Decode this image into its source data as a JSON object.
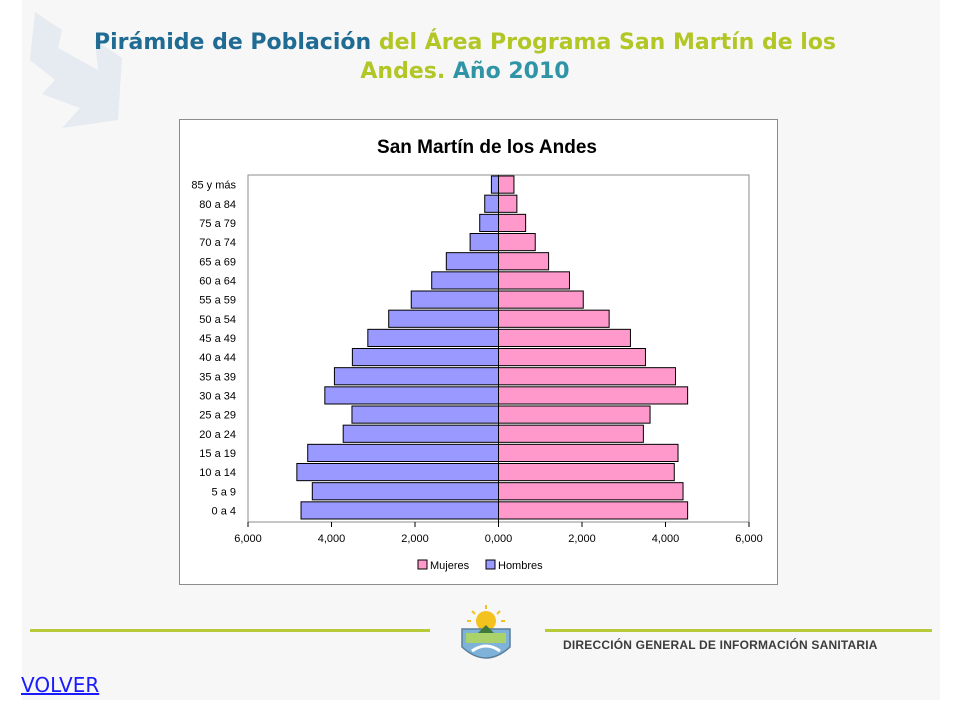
{
  "slide": {
    "title_part1": "Pirámide de Población",
    "title_part2": "del Área Programa San Martín de los Andes.",
    "title_part3": "Año 2010",
    "footer_text": "DIRECCIÓN GENERAL DE INFORMACIÓN SANITARIA",
    "volver_label": "VOLVER"
  },
  "colors": {
    "mujeres": "#ff99cc",
    "hombres": "#9999ff",
    "footer_line": "#b8c93a"
  },
  "chart_data": {
    "type": "bar",
    "orientation": "horizontal-population-pyramid",
    "title": "San Martín de los Andes",
    "categories": [
      "85 y más",
      "80 a 84",
      "75 a 79",
      "70 a 74",
      "65 a 69",
      "60 a 64",
      "55 a 59",
      "50 a 54",
      "45 a 49",
      "40 a 44",
      "35 a 39",
      "30 a 34",
      "25 a 29",
      "20 a 24",
      "15 a 19",
      "10 a 14",
      "5 a 9",
      "0 a 4"
    ],
    "series": [
      {
        "name": "Mujeres",
        "side": "right",
        "values": [
          370,
          440,
          650,
          880,
          1200,
          1700,
          2030,
          2650,
          3160,
          3520,
          4240,
          4530,
          3630,
          3470,
          4300,
          4210,
          4420,
          4530
        ]
      },
      {
        "name": "Hombres",
        "side": "left",
        "values": [
          170,
          330,
          450,
          680,
          1250,
          1600,
          2090,
          2630,
          3130,
          3500,
          3930,
          4160,
          3510,
          3720,
          4570,
          4830,
          4460,
          4730
        ]
      }
    ],
    "xlim": [
      -6000,
      6000
    ],
    "xticks": [
      -6000,
      -4000,
      -2000,
      0,
      2000,
      4000,
      6000
    ],
    "xtick_labels": [
      "6,000",
      "4,000",
      "2,000",
      "0,000",
      "2,000",
      "4,000",
      "6,000"
    ],
    "legend": [
      "Mujeres",
      "Hombres"
    ],
    "legend_position": "bottom",
    "grid": false
  }
}
